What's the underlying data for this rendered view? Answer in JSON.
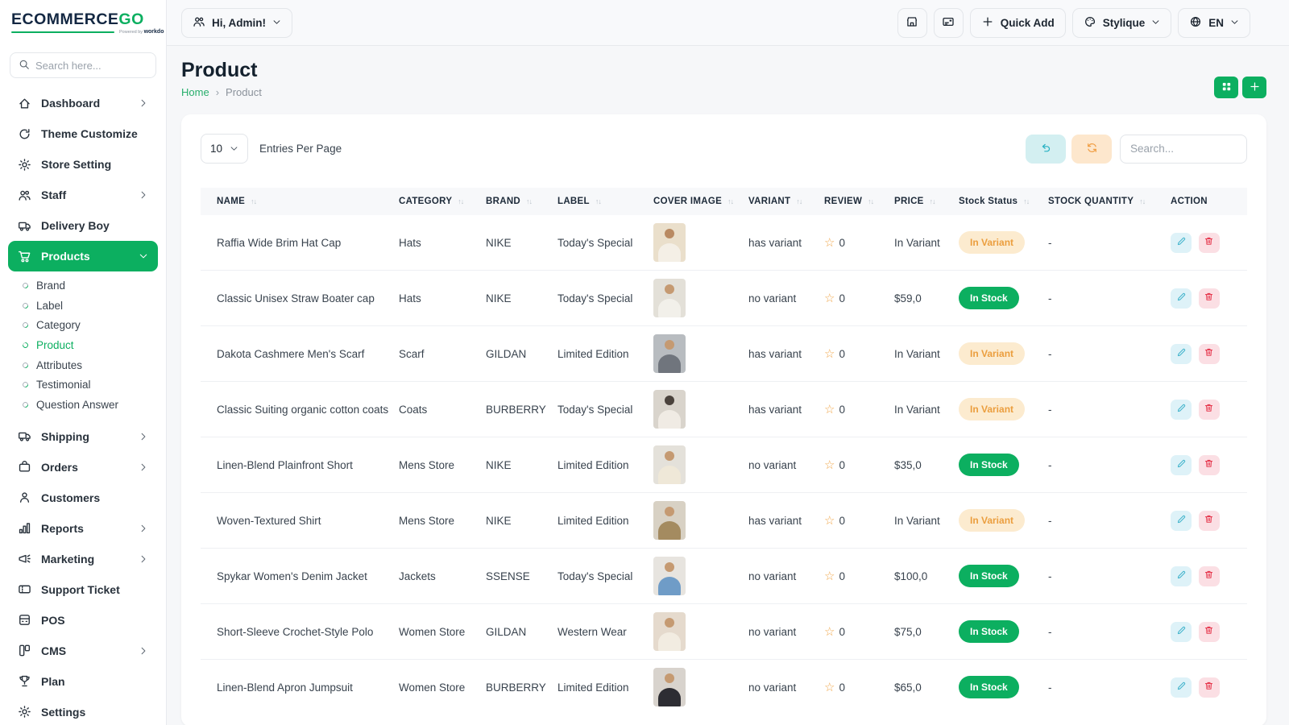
{
  "colors": {
    "primary_green": "#0caf60",
    "logo_navy": "#132742",
    "badge_variant_bg": "#fcebcf",
    "badge_variant_text": "#eb9e3e",
    "badge_stock_bg": "#0caf60",
    "edit_accent": "#43b4cc",
    "delete_accent": "#e63b50",
    "undo_accent": "#27b1c3",
    "refresh_accent": "#f09e44"
  },
  "brand": {
    "logo_main": "ECOMMERCE",
    "logo_accent": "GO",
    "powered_by": "Powered by",
    "powered_brand": "workdo"
  },
  "sidebar": {
    "search_placeholder": "Search here...",
    "items": [
      {
        "label": "Dashboard",
        "icon": "dashboard-icon",
        "chevron": "right"
      },
      {
        "label": "Theme Customize",
        "icon": "theme-customize-icon"
      },
      {
        "label": "Store Setting",
        "icon": "store-setting-icon"
      },
      {
        "label": "Staff",
        "icon": "staff-icon",
        "chevron": "right"
      },
      {
        "label": "Delivery Boy",
        "icon": "delivery-boy-icon"
      },
      {
        "label": "Products",
        "icon": "products-cart-icon",
        "chevron": "down",
        "active": true,
        "children": [
          {
            "label": "Brand"
          },
          {
            "label": "Label"
          },
          {
            "label": "Category"
          },
          {
            "label": "Product",
            "active": true
          },
          {
            "label": "Attributes"
          },
          {
            "label": "Testimonial"
          },
          {
            "label": "Question Answer"
          }
        ]
      },
      {
        "label": "Shipping",
        "icon": "shipping-icon",
        "chevron": "right"
      },
      {
        "label": "Orders",
        "icon": "orders-icon",
        "chevron": "right"
      },
      {
        "label": "Customers",
        "icon": "customers-icon"
      },
      {
        "label": "Reports",
        "icon": "reports-icon",
        "chevron": "right"
      },
      {
        "label": "Marketing",
        "icon": "marketing-icon",
        "chevron": "right"
      },
      {
        "label": "Support Ticket",
        "icon": "support-ticket-icon"
      },
      {
        "label": "POS",
        "icon": "pos-icon"
      },
      {
        "label": "CMS",
        "icon": "cms-icon",
        "chevron": "right"
      },
      {
        "label": "Plan",
        "icon": "plan-icon"
      },
      {
        "label": "Settings",
        "icon": "settings-icon"
      }
    ]
  },
  "topbar": {
    "user_label": "Hi, Admin!",
    "quick_add_label": "Quick Add",
    "theme_label": "Stylique",
    "lang_label": "EN"
  },
  "page": {
    "title": "Product",
    "breadcrumb_home": "Home",
    "breadcrumb_current": "Product"
  },
  "controls": {
    "entries_value": "10",
    "entries_label": "Entries Per Page",
    "search_placeholder": "Search..."
  },
  "table": {
    "headers": [
      {
        "label": "NAME",
        "sortable": true
      },
      {
        "label": "CATEGORY",
        "sortable": true
      },
      {
        "label": "BRAND",
        "sortable": true
      },
      {
        "label": "LABEL",
        "sortable": true
      },
      {
        "label": "COVER IMAGE",
        "sortable": true
      },
      {
        "label": "VARIANT",
        "sortable": true
      },
      {
        "label": "REVIEW",
        "sortable": true
      },
      {
        "label": "PRICE",
        "sortable": true
      },
      {
        "label": "Stock Status",
        "sortable": true
      },
      {
        "label": "STOCK QUANTITY",
        "sortable": true
      },
      {
        "label": "ACTION",
        "sortable": false
      }
    ],
    "rows": [
      {
        "name": "Raffia Wide Brim Hat Cap",
        "category": "Hats",
        "brand": "NIKE",
        "label": "Today's Special",
        "variant": "has variant",
        "review": "0",
        "price": "In Variant",
        "stock_status": "In Variant",
        "stock_type": "variant",
        "stock_quantity": "-",
        "thumb": {
          "bg": "#eadfcb",
          "cloth": "#f4efe6",
          "head": "#b98a62"
        }
      },
      {
        "name": "Classic Unisex Straw Boater cap",
        "category": "Hats",
        "brand": "NIKE",
        "label": "Today's Special",
        "variant": "no variant",
        "review": "0",
        "price": "$59,0",
        "stock_status": "In Stock",
        "stock_type": "stock",
        "stock_quantity": "-",
        "thumb": {
          "bg": "#e3e0d8",
          "cloth": "#f2f0ea",
          "head": "#c59a72"
        }
      },
      {
        "name": "Dakota Cashmere Men's Scarf",
        "category": "Scarf",
        "brand": "GILDAN",
        "label": "Limited Edition",
        "variant": "has variant",
        "review": "0",
        "price": "In Variant",
        "stock_status": "In Variant",
        "stock_type": "variant",
        "stock_quantity": "-",
        "thumb": {
          "bg": "#b8bcc0",
          "cloth": "#70757d",
          "head": "#c59a72"
        }
      },
      {
        "name": "Classic Suiting organic cotton coats",
        "category": "Coats",
        "brand": "BURBERRY",
        "label": "Today's Special",
        "variant": "has variant",
        "review": "0",
        "price": "In Variant",
        "stock_status": "In Variant",
        "stock_type": "variant",
        "stock_quantity": "-",
        "thumb": {
          "bg": "#d9d4cc",
          "cloth": "#f0ebe4",
          "head": "#4a423c"
        }
      },
      {
        "name": "Linen-Blend Plainfront Short",
        "category": "Mens Store",
        "brand": "NIKE",
        "label": "Limited Edition",
        "variant": "no variant",
        "review": "0",
        "price": "$35,0",
        "stock_status": "In Stock",
        "stock_type": "stock",
        "stock_quantity": "-",
        "thumb": {
          "bg": "#e4e1da",
          "cloth": "#efe8d8",
          "head": "#c59a72"
        }
      },
      {
        "name": "Woven-Textured Shirt",
        "category": "Mens Store",
        "brand": "NIKE",
        "label": "Limited Edition",
        "variant": "has variant",
        "review": "0",
        "price": "In Variant",
        "stock_status": "In Variant",
        "stock_type": "variant",
        "stock_quantity": "-",
        "thumb": {
          "bg": "#d8d1c4",
          "cloth": "#a48b60",
          "head": "#c59a72"
        }
      },
      {
        "name": "Spykar Women's Denim Jacket",
        "category": "Jackets",
        "brand": "SSENSE",
        "label": "Today's Special",
        "variant": "no variant",
        "review": "0",
        "price": "$100,0",
        "stock_status": "In Stock",
        "stock_type": "stock",
        "stock_quantity": "-",
        "thumb": {
          "bg": "#e7e4df",
          "cloth": "#6f9cc7",
          "head": "#c59a72"
        }
      },
      {
        "name": "Short-Sleeve Crochet-Style Polo",
        "category": "Women Store",
        "brand": "GILDAN",
        "label": "Western Wear",
        "variant": "no variant",
        "review": "0",
        "price": "$75,0",
        "stock_status": "In Stock",
        "stock_type": "stock",
        "stock_quantity": "-",
        "thumb": {
          "bg": "#e5dacd",
          "cloth": "#f2ece1",
          "head": "#c59a72"
        }
      },
      {
        "name": "Linen-Blend Apron Jumpsuit",
        "category": "Women Store",
        "brand": "BURBERRY",
        "label": "Limited Edition",
        "variant": "no variant",
        "review": "0",
        "price": "$65,0",
        "stock_status": "In Stock",
        "stock_type": "stock",
        "stock_quantity": "-",
        "thumb": {
          "bg": "#d8d3cd",
          "cloth": "#2d2d33",
          "head": "#c59a72"
        }
      }
    ]
  }
}
